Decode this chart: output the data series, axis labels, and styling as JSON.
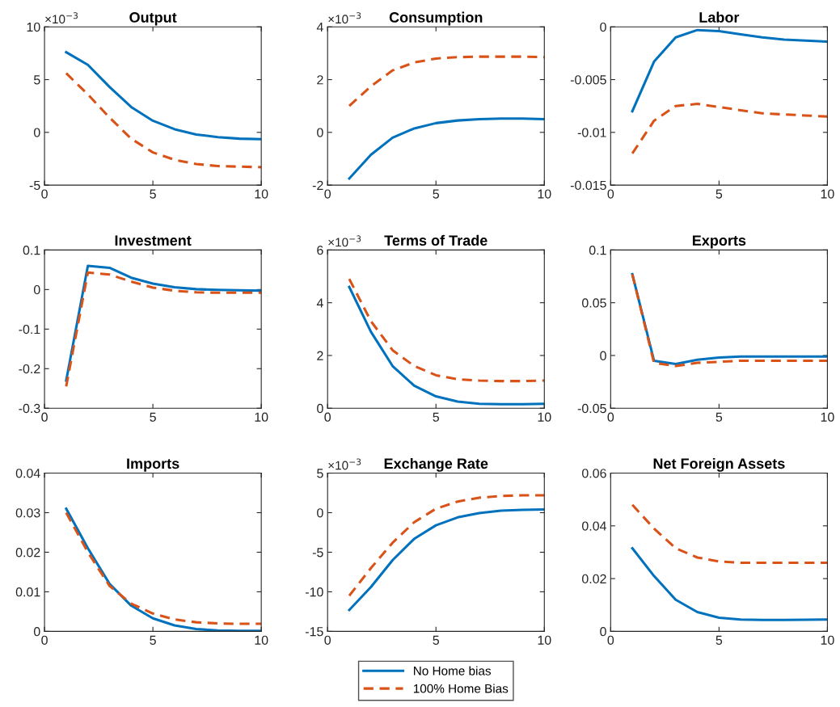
{
  "chart_data": [
    {
      "type": "line",
      "title": "Output",
      "annotations": [
        "×10$^{−3}$"
      ],
      "x": [
        1,
        2,
        3,
        4,
        5,
        6,
        7,
        8,
        9,
        10
      ],
      "xlim": [
        0,
        10
      ],
      "xticks": [
        0,
        5,
        10
      ],
      "ylim": [
        -5,
        10
      ],
      "yticks": [
        -5,
        0,
        5,
        10
      ],
      "grid": false,
      "legend": false,
      "series": [
        {
          "color": "#0072bd",
          "line_style": "solid",
          "values": [
            7.6,
            6.4,
            4.3,
            2.4,
            1.1,
            0.3,
            -0.2,
            -0.45,
            -0.6,
            -0.65
          ]
        },
        {
          "color": "#d95319",
          "line_style": "dashed",
          "values": [
            5.6,
            3.6,
            1.4,
            -0.6,
            -1.9,
            -2.6,
            -3.0,
            -3.2,
            -3.25,
            -3.3
          ]
        }
      ]
    },
    {
      "type": "line",
      "title": "Consumption",
      "annotations": [
        "×10$^{−3}$"
      ],
      "x": [
        1,
        2,
        3,
        4,
        5,
        6,
        7,
        8,
        9,
        10
      ],
      "xlim": [
        0,
        10
      ],
      "xticks": [
        0,
        5,
        10
      ],
      "ylim": [
        -2,
        4
      ],
      "yticks": [
        -2,
        0,
        2,
        4
      ],
      "grid": false,
      "legend": false,
      "series": [
        {
          "color": "#0072bd",
          "line_style": "solid",
          "values": [
            -1.75,
            -0.85,
            -0.2,
            0.15,
            0.35,
            0.45,
            0.5,
            0.52,
            0.52,
            0.5
          ]
        },
        {
          "color": "#d95319",
          "line_style": "dashed",
          "values": [
            1.0,
            1.75,
            2.35,
            2.65,
            2.8,
            2.85,
            2.87,
            2.87,
            2.87,
            2.85
          ]
        }
      ]
    },
    {
      "type": "line",
      "title": "Labor",
      "x": [
        1,
        2,
        3,
        4,
        5,
        6,
        7,
        8,
        9,
        10
      ],
      "xlim": [
        0,
        10
      ],
      "xticks": [
        0,
        5,
        10
      ],
      "ylim": [
        -0.015,
        0
      ],
      "yticks": [
        -0.015,
        -0.01,
        -0.005,
        0
      ],
      "grid": false,
      "legend": false,
      "series": [
        {
          "color": "#0072bd",
          "line_style": "solid",
          "values": [
            -0.008,
            -0.0033,
            -0.001,
            -0.0003,
            -0.0004,
            -0.0007,
            -0.001,
            -0.0012,
            -0.0013,
            -0.0014
          ]
        },
        {
          "color": "#d95319",
          "line_style": "dashed",
          "values": [
            -0.012,
            -0.0089,
            -0.0075,
            -0.0073,
            -0.0076,
            -0.0079,
            -0.0082,
            -0.0083,
            -0.0084,
            -0.0085
          ]
        }
      ]
    },
    {
      "type": "line",
      "title": "Investment",
      "x": [
        1,
        2,
        3,
        4,
        5,
        6,
        7,
        8,
        9,
        10
      ],
      "xlim": [
        0,
        10
      ],
      "xticks": [
        0,
        5,
        10
      ],
      "ylim": [
        -0.3,
        0.1
      ],
      "yticks": [
        -0.3,
        -0.2,
        -0.1,
        0,
        0.1
      ],
      "grid": false,
      "legend": false,
      "series": [
        {
          "color": "#0072bd",
          "line_style": "solid",
          "values": [
            -0.23,
            0.06,
            0.055,
            0.03,
            0.015,
            0.006,
            0.001,
            -0.001,
            -0.002,
            -0.003
          ]
        },
        {
          "color": "#d95319",
          "line_style": "dashed",
          "values": [
            -0.245,
            0.043,
            0.038,
            0.02,
            0.005,
            -0.003,
            -0.007,
            -0.008,
            -0.008,
            -0.008
          ]
        }
      ]
    },
    {
      "type": "line",
      "title": "Terms of Trade",
      "annotations": [
        "×10$^{−3}$"
      ],
      "x": [
        1,
        2,
        3,
        4,
        5,
        6,
        7,
        8,
        9,
        10
      ],
      "xlim": [
        0,
        10
      ],
      "xticks": [
        0,
        5,
        10
      ],
      "ylim": [
        0,
        6
      ],
      "yticks": [
        0,
        2,
        4,
        6
      ],
      "grid": false,
      "legend": false,
      "series": [
        {
          "color": "#0072bd",
          "line_style": "solid",
          "values": [
            4.6,
            2.9,
            1.6,
            0.85,
            0.45,
            0.25,
            0.17,
            0.15,
            0.15,
            0.17
          ]
        },
        {
          "color": "#d95319",
          "line_style": "dashed",
          "values": [
            4.9,
            3.3,
            2.2,
            1.6,
            1.25,
            1.1,
            1.05,
            1.03,
            1.03,
            1.05
          ]
        }
      ]
    },
    {
      "type": "line",
      "title": "Exports",
      "x": [
        1,
        2,
        3,
        4,
        5,
        6,
        7,
        8,
        9,
        10
      ],
      "xlim": [
        0,
        10
      ],
      "xticks": [
        0,
        5,
        10
      ],
      "ylim": [
        -0.05,
        0.1
      ],
      "yticks": [
        -0.05,
        0,
        0.05,
        0.1
      ],
      "grid": false,
      "legend": false,
      "series": [
        {
          "color": "#0072bd",
          "line_style": "solid",
          "values": [
            0.077,
            -0.005,
            -0.008,
            -0.004,
            -0.002,
            -0.001,
            -0.001,
            -0.001,
            -0.001,
            -0.001
          ]
        },
        {
          "color": "#d95319",
          "line_style": "dashed",
          "values": [
            0.077,
            -0.007,
            -0.01,
            -0.007,
            -0.006,
            -0.005,
            -0.005,
            -0.005,
            -0.005,
            -0.005
          ]
        }
      ]
    },
    {
      "type": "line",
      "title": "Imports",
      "x": [
        1,
        2,
        3,
        4,
        5,
        6,
        7,
        8,
        9,
        10
      ],
      "xlim": [
        0,
        10
      ],
      "xticks": [
        0,
        5,
        10
      ],
      "ylim": [
        0,
        0.04
      ],
      "yticks": [
        0,
        0.01,
        0.02,
        0.03,
        0.04
      ],
      "grid": false,
      "legend": false,
      "series": [
        {
          "color": "#0072bd",
          "line_style": "solid",
          "values": [
            0.031,
            0.021,
            0.012,
            0.0065,
            0.0033,
            0.0015,
            0.0006,
            0.0002,
            0.0001,
            0.0001
          ]
        },
        {
          "color": "#d95319",
          "line_style": "dashed",
          "values": [
            0.03,
            0.02,
            0.0115,
            0.007,
            0.0045,
            0.003,
            0.0023,
            0.002,
            0.0019,
            0.0019
          ]
        }
      ]
    },
    {
      "type": "line",
      "title": "Exchange Rate",
      "annotations": [
        "×10$^{−3}$"
      ],
      "x": [
        1,
        2,
        3,
        4,
        5,
        6,
        7,
        8,
        9,
        10
      ],
      "xlim": [
        0,
        10
      ],
      "xticks": [
        0,
        5,
        10
      ],
      "ylim": [
        -15,
        5
      ],
      "yticks": [
        -15,
        -10,
        -5,
        0,
        5
      ],
      "grid": false,
      "legend": "bottom",
      "series": [
        {
          "name": "No Home bias",
          "color": "#0072bd",
          "line_style": "solid",
          "values": [
            -12.3,
            -9.4,
            -6.0,
            -3.3,
            -1.6,
            -0.6,
            -0.05,
            0.25,
            0.35,
            0.4
          ]
        },
        {
          "name": "100% Home Bias",
          "color": "#d95319",
          "line_style": "dashed",
          "values": [
            -10.5,
            -7.0,
            -3.8,
            -1.2,
            0.5,
            1.4,
            1.9,
            2.1,
            2.2,
            2.2
          ]
        }
      ]
    },
    {
      "type": "line",
      "title": "Net Foreign Assets",
      "x": [
        1,
        2,
        3,
        4,
        5,
        6,
        7,
        8,
        9,
        10
      ],
      "xlim": [
        0,
        10
      ],
      "xticks": [
        0,
        5,
        10
      ],
      "ylim": [
        0,
        0.06
      ],
      "yticks": [
        0,
        0.02,
        0.04,
        0.06
      ],
      "grid": false,
      "legend": false,
      "series": [
        {
          "color": "#0072bd",
          "line_style": "solid",
          "values": [
            0.0315,
            0.021,
            0.012,
            0.0073,
            0.0052,
            0.0045,
            0.0043,
            0.0043,
            0.0044,
            0.0045
          ]
        },
        {
          "color": "#d95319",
          "line_style": "dashed",
          "values": [
            0.048,
            0.039,
            0.0315,
            0.028,
            0.0265,
            0.026,
            0.026,
            0.026,
            0.026,
            0.026
          ]
        }
      ]
    }
  ]
}
